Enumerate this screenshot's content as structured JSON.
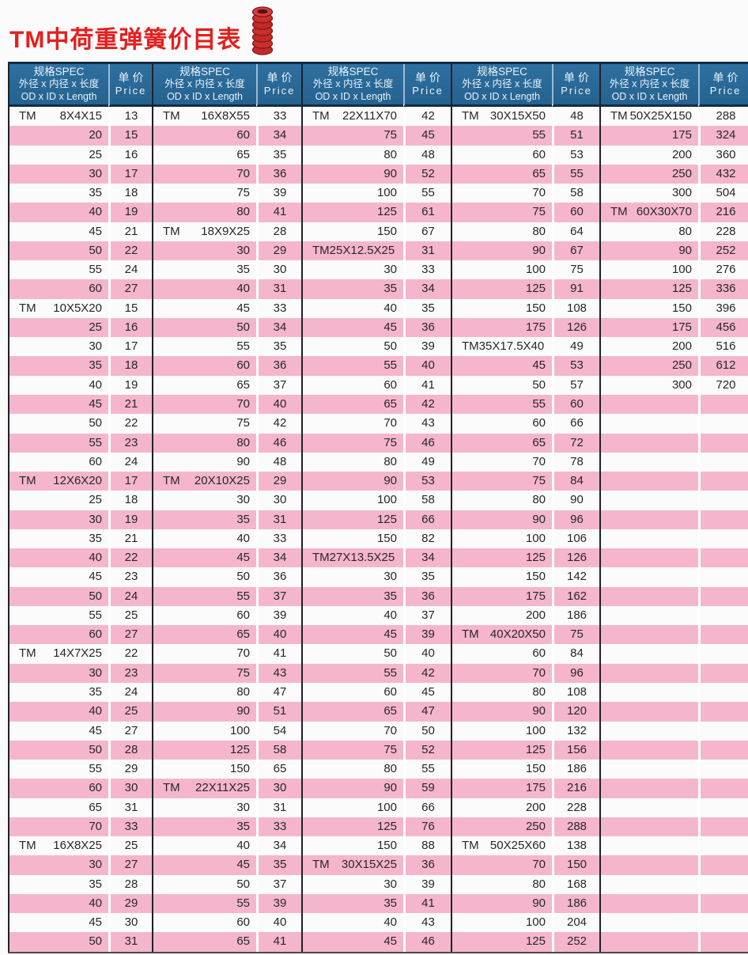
{
  "title": "TM中荷重弹簧价目表",
  "icon": "spring-icon",
  "colors": {
    "header_bg": "#2e70a0",
    "row_pink": "#f5b6cd",
    "title_red": "#e51f1d",
    "border_dark": "#1d2228",
    "header_border": "#142c44"
  },
  "header": {
    "spec_line1": "规格SPEC",
    "spec_line2": "外径 x 内径 x 长度",
    "spec_line3": "OD x ID x Length",
    "price_line1": "单价",
    "price_line2": "Price"
  },
  "table": {
    "columns": [
      {
        "rows": [
          [
            "TM 8X4X15",
            "13"
          ],
          [
            "20",
            "15"
          ],
          [
            "25",
            "16"
          ],
          [
            "30",
            "17"
          ],
          [
            "35",
            "18"
          ],
          [
            "40",
            "19"
          ],
          [
            "45",
            "21"
          ],
          [
            "50",
            "22"
          ],
          [
            "55",
            "24"
          ],
          [
            "60",
            "27"
          ],
          [
            "TM 10X5X20",
            "15"
          ],
          [
            "25",
            "16"
          ],
          [
            "30",
            "17"
          ],
          [
            "35",
            "18"
          ],
          [
            "40",
            "19"
          ],
          [
            "45",
            "21"
          ],
          [
            "50",
            "22"
          ],
          [
            "55",
            "23"
          ],
          [
            "60",
            "24"
          ],
          [
            "TM 12X6X20",
            "17"
          ],
          [
            "25",
            "18"
          ],
          [
            "30",
            "19"
          ],
          [
            "35",
            "21"
          ],
          [
            "40",
            "22"
          ],
          [
            "45",
            "23"
          ],
          [
            "50",
            "24"
          ],
          [
            "55",
            "25"
          ],
          [
            "60",
            "27"
          ],
          [
            "TM 14X7X25",
            "22"
          ],
          [
            "30",
            "23"
          ],
          [
            "35",
            "24"
          ],
          [
            "40",
            "25"
          ],
          [
            "45",
            "27"
          ],
          [
            "50",
            "28"
          ],
          [
            "55",
            "29"
          ],
          [
            "60",
            "30"
          ],
          [
            "65",
            "31"
          ],
          [
            "70",
            "33"
          ],
          [
            "TM 16X8X25",
            "25"
          ],
          [
            "30",
            "27"
          ],
          [
            "35",
            "28"
          ],
          [
            "40",
            "29"
          ],
          [
            "45",
            "30"
          ],
          [
            "50",
            "31"
          ]
        ]
      },
      {
        "rows": [
          [
            "TM 16X8X55",
            "33"
          ],
          [
            "60",
            "34"
          ],
          [
            "65",
            "35"
          ],
          [
            "70",
            "36"
          ],
          [
            "75",
            "39"
          ],
          [
            "80",
            "41"
          ],
          [
            "TM 18X9X25",
            "28"
          ],
          [
            "30",
            "29"
          ],
          [
            "35",
            "30"
          ],
          [
            "40",
            "31"
          ],
          [
            "45",
            "33"
          ],
          [
            "50",
            "34"
          ],
          [
            "55",
            "35"
          ],
          [
            "60",
            "36"
          ],
          [
            "65",
            "37"
          ],
          [
            "70",
            "40"
          ],
          [
            "75",
            "42"
          ],
          [
            "80",
            "46"
          ],
          [
            "90",
            "48"
          ],
          [
            "TM 20X10X25",
            "29"
          ],
          [
            "30",
            "30"
          ],
          [
            "35",
            "31"
          ],
          [
            "40",
            "33"
          ],
          [
            "45",
            "34"
          ],
          [
            "50",
            "36"
          ],
          [
            "55",
            "37"
          ],
          [
            "60",
            "39"
          ],
          [
            "65",
            "40"
          ],
          [
            "70",
            "41"
          ],
          [
            "75",
            "43"
          ],
          [
            "80",
            "47"
          ],
          [
            "90",
            "51"
          ],
          [
            "100",
            "54"
          ],
          [
            "125",
            "58"
          ],
          [
            "150",
            "65"
          ],
          [
            "TM 22X11X25",
            "30"
          ],
          [
            "30",
            "31"
          ],
          [
            "35",
            "33"
          ],
          [
            "40",
            "34"
          ],
          [
            "45",
            "35"
          ],
          [
            "50",
            "37"
          ],
          [
            "55",
            "39"
          ],
          [
            "60",
            "40"
          ],
          [
            "65",
            "41"
          ]
        ]
      },
      {
        "rows": [
          [
            "TM 22X11X70",
            "42"
          ],
          [
            "75",
            "45"
          ],
          [
            "80",
            "48"
          ],
          [
            "90",
            "52"
          ],
          [
            "100",
            "55"
          ],
          [
            "125",
            "61"
          ],
          [
            "150",
            "67"
          ],
          [
            "TM25X12.5X25",
            "31"
          ],
          [
            "30",
            "33"
          ],
          [
            "35",
            "34"
          ],
          [
            "40",
            "35"
          ],
          [
            "45",
            "36"
          ],
          [
            "50",
            "39"
          ],
          [
            "55",
            "40"
          ],
          [
            "60",
            "41"
          ],
          [
            "65",
            "42"
          ],
          [
            "70",
            "43"
          ],
          [
            "75",
            "46"
          ],
          [
            "80",
            "49"
          ],
          [
            "90",
            "53"
          ],
          [
            "100",
            "58"
          ],
          [
            "125",
            "66"
          ],
          [
            "150",
            "82"
          ],
          [
            "TM27X13.5X25",
            "34"
          ],
          [
            "30",
            "35"
          ],
          [
            "35",
            "36"
          ],
          [
            "40",
            "37"
          ],
          [
            "45",
            "39"
          ],
          [
            "50",
            "40"
          ],
          [
            "55",
            "42"
          ],
          [
            "60",
            "45"
          ],
          [
            "65",
            "47"
          ],
          [
            "70",
            "50"
          ],
          [
            "75",
            "52"
          ],
          [
            "80",
            "55"
          ],
          [
            "90",
            "59"
          ],
          [
            "100",
            "66"
          ],
          [
            "125",
            "76"
          ],
          [
            "150",
            "88"
          ],
          [
            "TM 30X15X25",
            "36"
          ],
          [
            "30",
            "39"
          ],
          [
            "35",
            "41"
          ],
          [
            "40",
            "43"
          ],
          [
            "45",
            "46"
          ]
        ]
      },
      {
        "rows": [
          [
            "TM 30X15X50",
            "48"
          ],
          [
            "55",
            "51"
          ],
          [
            "60",
            "53"
          ],
          [
            "65",
            "55"
          ],
          [
            "70",
            "58"
          ],
          [
            "75",
            "60"
          ],
          [
            "80",
            "64"
          ],
          [
            "90",
            "67"
          ],
          [
            "100",
            "75"
          ],
          [
            "125",
            "91"
          ],
          [
            "150",
            "108"
          ],
          [
            "175",
            "126"
          ],
          [
            "TM35X17.5X40",
            "49"
          ],
          [
            "45",
            "53"
          ],
          [
            "50",
            "57"
          ],
          [
            "55",
            "60"
          ],
          [
            "60",
            "66"
          ],
          [
            "65",
            "72"
          ],
          [
            "70",
            "78"
          ],
          [
            "75",
            "84"
          ],
          [
            "80",
            "90"
          ],
          [
            "90",
            "96"
          ],
          [
            "100",
            "106"
          ],
          [
            "125",
            "126"
          ],
          [
            "150",
            "142"
          ],
          [
            "175",
            "162"
          ],
          [
            "200",
            "186"
          ],
          [
            "TM 40X20X50",
            "75"
          ],
          [
            "60",
            "84"
          ],
          [
            "70",
            "96"
          ],
          [
            "80",
            "108"
          ],
          [
            "90",
            "120"
          ],
          [
            "100",
            "132"
          ],
          [
            "125",
            "156"
          ],
          [
            "150",
            "186"
          ],
          [
            "175",
            "216"
          ],
          [
            "200",
            "228"
          ],
          [
            "250",
            "288"
          ],
          [
            "TM 50X25X60",
            "138"
          ],
          [
            "70",
            "150"
          ],
          [
            "80",
            "168"
          ],
          [
            "90",
            "186"
          ],
          [
            "100",
            "204"
          ],
          [
            "125",
            "252"
          ]
        ]
      },
      {
        "rows": [
          [
            "TM 50X25X150",
            "288"
          ],
          [
            "175",
            "324"
          ],
          [
            "200",
            "360"
          ],
          [
            "250",
            "432"
          ],
          [
            "300",
            "504"
          ],
          [
            "TM 60X30X70",
            "216"
          ],
          [
            "80",
            "228"
          ],
          [
            "90",
            "252"
          ],
          [
            "100",
            "276"
          ],
          [
            "125",
            "336"
          ],
          [
            "150",
            "396"
          ],
          [
            "175",
            "456"
          ],
          [
            "200",
            "516"
          ],
          [
            "250",
            "612"
          ],
          [
            "300",
            "720"
          ],
          [
            "",
            ""
          ],
          [
            "",
            ""
          ],
          [
            "",
            ""
          ],
          [
            "",
            ""
          ],
          [
            "",
            ""
          ],
          [
            "",
            ""
          ],
          [
            "",
            ""
          ],
          [
            "",
            ""
          ],
          [
            "",
            ""
          ],
          [
            "",
            ""
          ],
          [
            "",
            ""
          ],
          [
            "",
            ""
          ],
          [
            "",
            ""
          ],
          [
            "",
            ""
          ],
          [
            "",
            ""
          ],
          [
            "",
            ""
          ],
          [
            "",
            ""
          ],
          [
            "",
            ""
          ],
          [
            "",
            ""
          ],
          [
            "",
            ""
          ],
          [
            "",
            ""
          ],
          [
            "",
            ""
          ],
          [
            "",
            ""
          ],
          [
            "",
            ""
          ],
          [
            "",
            ""
          ],
          [
            "",
            ""
          ],
          [
            "",
            ""
          ],
          [
            "",
            ""
          ],
          [
            "",
            ""
          ]
        ]
      }
    ]
  }
}
